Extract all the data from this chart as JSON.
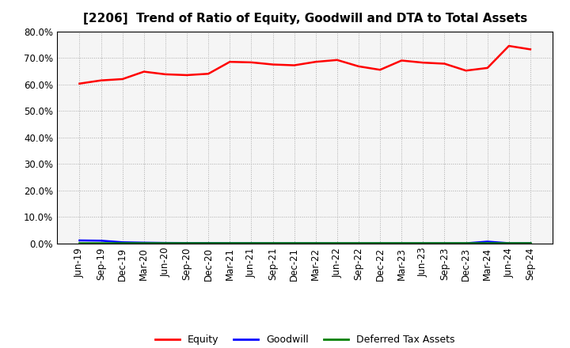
{
  "title": "[2206]  Trend of Ratio of Equity, Goodwill and DTA to Total Assets",
  "x_labels": [
    "Jun-19",
    "Sep-19",
    "Dec-19",
    "Mar-20",
    "Jun-20",
    "Sep-20",
    "Dec-20",
    "Mar-21",
    "Jun-21",
    "Sep-21",
    "Dec-21",
    "Mar-22",
    "Jun-22",
    "Sep-22",
    "Dec-22",
    "Mar-23",
    "Jun-23",
    "Sep-23",
    "Dec-23",
    "Mar-24",
    "Jun-24",
    "Sep-24"
  ],
  "equity": [
    60.3,
    61.5,
    62.0,
    64.8,
    63.8,
    63.5,
    64.0,
    68.5,
    68.3,
    67.5,
    67.2,
    68.5,
    69.2,
    66.8,
    65.5,
    69.0,
    68.2,
    67.8,
    65.2,
    66.2,
    74.5,
    73.2
  ],
  "goodwill": [
    1.2,
    1.1,
    0.5,
    0.35,
    0.25,
    0.22,
    0.22,
    0.18,
    0.18,
    0.15,
    0.15,
    0.15,
    0.12,
    0.12,
    0.12,
    0.12,
    0.12,
    0.12,
    0.12,
    0.75,
    0.15,
    0.15
  ],
  "dta": [
    0.15,
    0.15,
    0.15,
    0.15,
    0.15,
    0.15,
    0.15,
    0.15,
    0.15,
    0.15,
    0.15,
    0.15,
    0.15,
    0.15,
    0.15,
    0.15,
    0.15,
    0.15,
    0.15,
    0.15,
    0.15,
    0.15
  ],
  "equity_color": "#ff0000",
  "goodwill_color": "#0000ff",
  "dta_color": "#008000",
  "ylim": [
    0,
    80
  ],
  "yticks": [
    0,
    10,
    20,
    30,
    40,
    50,
    60,
    70,
    80
  ],
  "ytick_labels": [
    "0.0%",
    "10.0%",
    "20.0%",
    "30.0%",
    "40.0%",
    "50.0%",
    "60.0%",
    "70.0%",
    "80.0%"
  ],
  "grid_color": "#aaaaaa",
  "bg_color": "#ffffff",
  "plot_bg_color": "#f5f5f5",
  "legend_labels": [
    "Equity",
    "Goodwill",
    "Deferred Tax Assets"
  ],
  "line_width": 1.8,
  "title_fontsize": 11,
  "tick_fontsize": 8.5,
  "legend_fontsize": 9
}
